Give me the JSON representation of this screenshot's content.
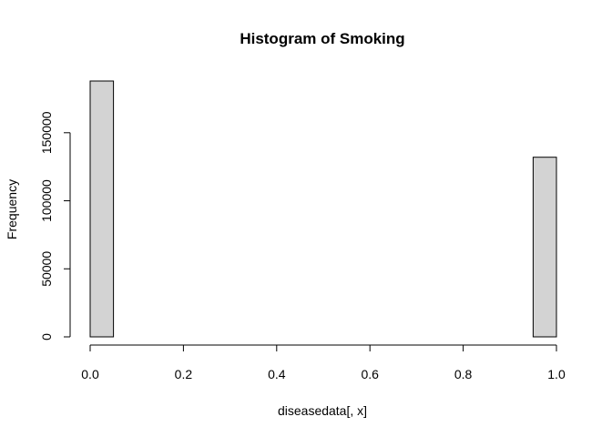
{
  "chart_data": {
    "type": "bar",
    "title": "Histogram of Smoking",
    "xlabel": "diseasedata[, x]",
    "ylabel": "Frequency",
    "bins": [
      {
        "start": 0.0,
        "end": 0.05,
        "count": 188000
      },
      {
        "start": 0.05,
        "end": 0.1,
        "count": 0
      },
      {
        "start": 0.1,
        "end": 0.15,
        "count": 0
      },
      {
        "start": 0.15,
        "end": 0.2,
        "count": 0
      },
      {
        "start": 0.2,
        "end": 0.25,
        "count": 0
      },
      {
        "start": 0.25,
        "end": 0.3,
        "count": 0
      },
      {
        "start": 0.3,
        "end": 0.35,
        "count": 0
      },
      {
        "start": 0.35,
        "end": 0.4,
        "count": 0
      },
      {
        "start": 0.4,
        "end": 0.45,
        "count": 0
      },
      {
        "start": 0.45,
        "end": 0.5,
        "count": 0
      },
      {
        "start": 0.5,
        "end": 0.55,
        "count": 0
      },
      {
        "start": 0.55,
        "end": 0.6,
        "count": 0
      },
      {
        "start": 0.6,
        "end": 0.65,
        "count": 0
      },
      {
        "start": 0.65,
        "end": 0.7,
        "count": 0
      },
      {
        "start": 0.7,
        "end": 0.75,
        "count": 0
      },
      {
        "start": 0.75,
        "end": 0.8,
        "count": 0
      },
      {
        "start": 0.8,
        "end": 0.85,
        "count": 0
      },
      {
        "start": 0.85,
        "end": 0.9,
        "count": 0
      },
      {
        "start": 0.9,
        "end": 0.95,
        "count": 0
      },
      {
        "start": 0.95,
        "end": 1.0,
        "count": 132000
      }
    ],
    "xlim": [
      0,
      1
    ],
    "ylim": [
      0,
      188000
    ],
    "xticks": [
      0.0,
      0.2,
      0.4,
      0.6,
      0.8,
      1.0
    ],
    "xtick_labels": [
      "0.0",
      "0.2",
      "0.4",
      "0.6",
      "0.8",
      "1.0"
    ],
    "yticks": [
      0,
      50000,
      100000,
      150000
    ],
    "ytick_labels": [
      "0",
      "50000",
      "100000",
      "150000"
    ],
    "bar_color": "#d3d3d3",
    "grid": false,
    "legend": "none"
  }
}
